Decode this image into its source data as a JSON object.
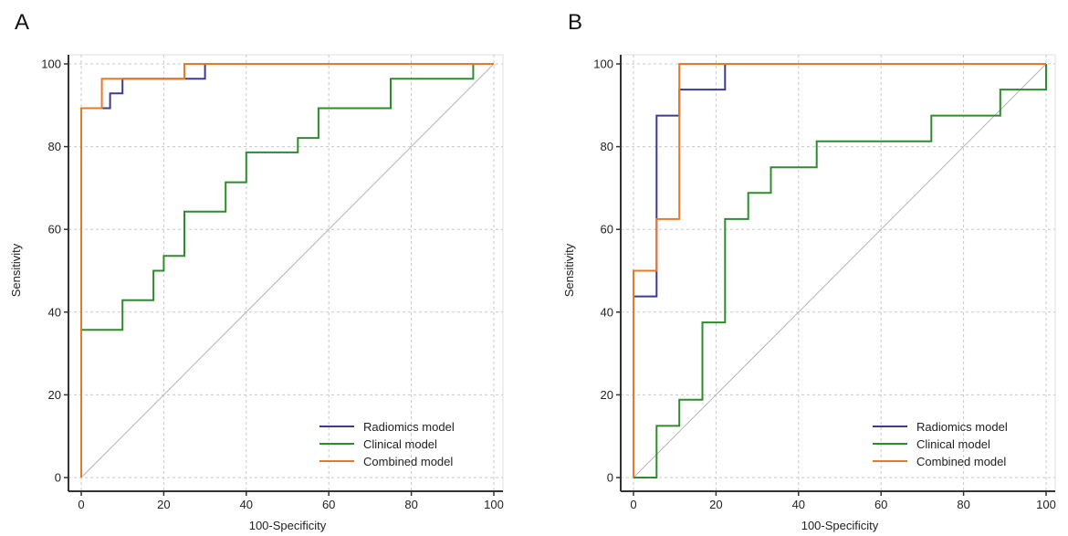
{
  "chart_data": [
    {
      "panel": "A",
      "type": "line",
      "title": "",
      "xlabel": "100-Specificity",
      "ylabel": "Sensitivity",
      "xlim": [
        0,
        100
      ],
      "ylim": [
        0,
        100
      ],
      "xticks": [
        "0",
        "20",
        "40",
        "60",
        "80",
        "100"
      ],
      "yticks": [
        "0",
        "20",
        "40",
        "60",
        "80",
        "100"
      ],
      "grid": true,
      "legend": "bottom-right",
      "series": [
        {
          "name": "Radiomics model",
          "color": "#3b3b8f",
          "x": [
            0,
            0,
            7,
            7,
            10,
            10,
            12.5,
            12.5,
            30,
            30,
            100
          ],
          "y": [
            0,
            89.3,
            89.3,
            92.9,
            92.9,
            96.4,
            96.4,
            96.4,
            96.4,
            100,
            100
          ]
        },
        {
          "name": "Clinical model",
          "color": "#2e8b2e",
          "x": [
            0,
            0,
            10,
            10,
            17.5,
            17.5,
            20,
            20,
            25,
            25,
            35,
            35,
            40,
            40,
            52.5,
            52.5,
            57.5,
            57.5,
            75,
            75,
            95,
            95,
            100
          ],
          "y": [
            0,
            35.7,
            35.7,
            42.9,
            42.9,
            50,
            50,
            53.6,
            53.6,
            64.3,
            64.3,
            71.4,
            71.4,
            78.6,
            78.6,
            82.1,
            82.1,
            89.3,
            89.3,
            96.4,
            96.4,
            100,
            100
          ]
        },
        {
          "name": "Combined model",
          "color": "#e8782a",
          "x": [
            0,
            0,
            5,
            5,
            25,
            25,
            100
          ],
          "y": [
            0,
            89.3,
            89.3,
            96.4,
            96.4,
            100,
            100
          ]
        }
      ]
    },
    {
      "panel": "B",
      "type": "line",
      "title": "",
      "xlabel": "100-Specificity",
      "ylabel": "Sensitivity",
      "xlim": [
        0,
        100
      ],
      "ylim": [
        0,
        100
      ],
      "xticks": [
        "0",
        "20",
        "40",
        "60",
        "80",
        "100"
      ],
      "yticks": [
        "0",
        "20",
        "40",
        "60",
        "80",
        "100"
      ],
      "grid": true,
      "legend": "bottom-right",
      "series": [
        {
          "name": "Radiomics model",
          "color": "#3b3b8f",
          "x": [
            0,
            0,
            5.6,
            5.6,
            11.1,
            11.1,
            22.2,
            22.2,
            100
          ],
          "y": [
            0,
            43.8,
            43.8,
            87.5,
            87.5,
            93.8,
            93.8,
            100,
            100
          ]
        },
        {
          "name": "Clinical model",
          "color": "#2e8b2e",
          "x": [
            0,
            5.6,
            5.6,
            11.1,
            11.1,
            16.7,
            16.7,
            22.2,
            22.2,
            27.8,
            27.8,
            33.3,
            33.3,
            44.4,
            44.4,
            72.2,
            72.2,
            88.9,
            88.9,
            100,
            100
          ],
          "y": [
            0,
            0,
            12.5,
            12.5,
            18.8,
            18.8,
            37.5,
            37.5,
            62.5,
            62.5,
            68.8,
            68.8,
            75,
            75,
            81.3,
            81.3,
            87.5,
            87.5,
            93.8,
            93.8,
            100
          ]
        },
        {
          "name": "Combined model",
          "color": "#e8782a",
          "x": [
            0,
            0,
            5.6,
            5.6,
            11.1,
            11.1,
            100
          ],
          "y": [
            0,
            50,
            50,
            62.5,
            62.5,
            100,
            100
          ]
        }
      ]
    }
  ],
  "style": {
    "grid_color": "#c8c8c8",
    "diagonal_color": "#b4b4b4",
    "axis_color": "#333333"
  }
}
